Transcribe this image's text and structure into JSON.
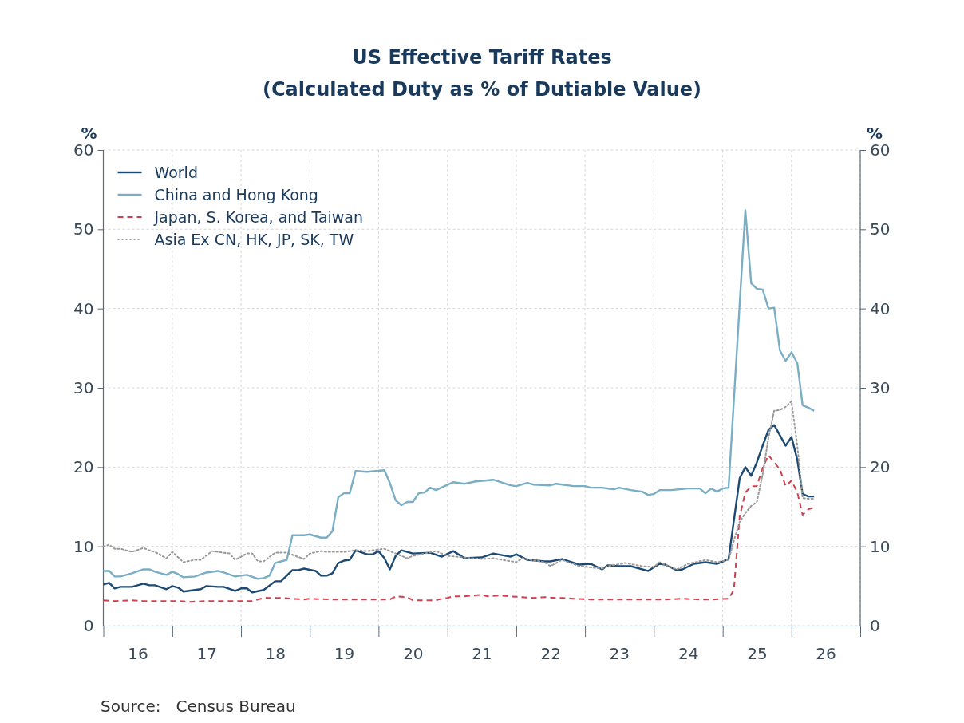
{
  "chart_data": {
    "type": "line",
    "title": "US Effective Tariff Rates",
    "subtitle": "(Calculated Duty as % of Dutiable Value)",
    "ylabel": "%",
    "y2label": "%",
    "annotations": [
      "Source:   Census Bureau"
    ],
    "xlim": [
      "2016-01-01",
      "2027-01-01"
    ],
    "xticks": [
      {
        "value": "2016-01-01",
        "label": null
      },
      {
        "value": "2016-07-01",
        "label": "16"
      },
      {
        "value": "2017-01-01",
        "label": null
      },
      {
        "value": "2017-07-01",
        "label": "17"
      },
      {
        "value": "2018-01-01",
        "label": null
      },
      {
        "value": "2018-07-01",
        "label": "18"
      },
      {
        "value": "2019-01-01",
        "label": null
      },
      {
        "value": "2019-07-01",
        "label": "19"
      },
      {
        "value": "2020-01-01",
        "label": null
      },
      {
        "value": "2020-07-01",
        "label": "20"
      },
      {
        "value": "2021-01-01",
        "label": null
      },
      {
        "value": "2021-07-01",
        "label": "21"
      },
      {
        "value": "2022-01-01",
        "label": null
      },
      {
        "value": "2022-07-01",
        "label": "22"
      },
      {
        "value": "2023-01-01",
        "label": null
      },
      {
        "value": "2023-07-01",
        "label": "23"
      },
      {
        "value": "2024-01-01",
        "label": null
      },
      {
        "value": "2024-07-01",
        "label": "24"
      },
      {
        "value": "2025-01-01",
        "label": null
      },
      {
        "value": "2025-07-01",
        "label": "25"
      },
      {
        "value": "2026-01-01",
        "label": null
      },
      {
        "value": "2026-07-01",
        "label": "26"
      },
      {
        "value": "2027-01-01",
        "label": null
      }
    ],
    "ylim": [
      0,
      60
    ],
    "yticks": [
      0,
      10,
      20,
      30,
      40,
      50,
      60
    ],
    "y2lim": [
      0,
      60
    ],
    "y2ticks": [
      0,
      10,
      20,
      30,
      40,
      50,
      60
    ],
    "grid": true,
    "legend": "top left",
    "series": [
      {
        "name": "World",
        "color": "#1c4a72",
        "line_style": "solid",
        "x": [
          "2016-01",
          "2016-02",
          "2016-03",
          "2016-04",
          "2016-06",
          "2016-08",
          "2016-09",
          "2016-10",
          "2016-12",
          "2017-01",
          "2017-02",
          "2017-03",
          "2017-05",
          "2017-06",
          "2017-07",
          "2017-09",
          "2017-10",
          "2017-12",
          "2018-01",
          "2018-02",
          "2018-03",
          "2018-05",
          "2018-07",
          "2018-08",
          "2018-10",
          "2018-11",
          "2018-12",
          "2019-02",
          "2019-03",
          "2019-04",
          "2019-05",
          "2019-06",
          "2019-07",
          "2019-08",
          "2019-09",
          "2019-11",
          "2019-12",
          "2020-01",
          "2020-02",
          "2020-03",
          "2020-04",
          "2020-05",
          "2020-07",
          "2020-10",
          "2020-12",
          "2021-02",
          "2021-04",
          "2021-07",
          "2021-09",
          "2021-12",
          "2022-01",
          "2022-03",
          "2022-06",
          "2022-07",
          "2022-09",
          "2022-12",
          "2023-02",
          "2023-04",
          "2023-05",
          "2023-07",
          "2023-09",
          "2023-12",
          "2024-02",
          "2024-03",
          "2024-05",
          "2024-06",
          "2024-08",
          "2024-10",
          "2024-12",
          "2025-02",
          "2025-04",
          "2025-05",
          "2025-06",
          "2025-07",
          "2025-08",
          "2025-09",
          "2025-10",
          "2025-11",
          "2025-12",
          "2026-01",
          "2026-02",
          "2026-03",
          "2026-04",
          "2026-05"
        ],
        "values": [
          5.2,
          5.4,
          4.7,
          4.9,
          4.9,
          5.3,
          5.1,
          5.1,
          4.6,
          5.0,
          4.8,
          4.3,
          4.5,
          4.6,
          5.0,
          4.9,
          4.9,
          4.4,
          4.7,
          4.7,
          4.2,
          4.5,
          5.6,
          5.6,
          7.0,
          7.0,
          7.2,
          6.9,
          6.3,
          6.3,
          6.6,
          7.9,
          8.2,
          8.3,
          9.5,
          9.0,
          9.0,
          9.4,
          8.5,
          7.1,
          8.8,
          9.5,
          9.1,
          9.2,
          8.7,
          9.4,
          8.5,
          8.6,
          9.1,
          8.7,
          9.0,
          8.3,
          8.1,
          8.1,
          8.4,
          7.7,
          7.8,
          7.1,
          7.6,
          7.5,
          7.5,
          6.9,
          7.8,
          7.7,
          7.0,
          7.1,
          7.8,
          8.0,
          7.8,
          8.4,
          18.6,
          20.0,
          18.9,
          20.6,
          22.7,
          24.7,
          25.3,
          24.0,
          22.7,
          23.8,
          20.9,
          16.6,
          16.3,
          16.3
        ]
      },
      {
        "name": "China and Hong Kong",
        "color": "#7aaec4",
        "line_style": "solid",
        "x": [
          "2016-01",
          "2016-02",
          "2016-03",
          "2016-04",
          "2016-06",
          "2016-08",
          "2016-09",
          "2016-10",
          "2016-12",
          "2017-01",
          "2017-02",
          "2017-03",
          "2017-05",
          "2017-07",
          "2017-09",
          "2017-10",
          "2017-12",
          "2018-02",
          "2018-04",
          "2018-05",
          "2018-06",
          "2018-07",
          "2018-09",
          "2018-10",
          "2018-12",
          "2019-01",
          "2019-03",
          "2019-04",
          "2019-05",
          "2019-06",
          "2019-07",
          "2019-08",
          "2019-09",
          "2019-11",
          "2020-02",
          "2020-03",
          "2020-04",
          "2020-05",
          "2020-06",
          "2020-07",
          "2020-08",
          "2020-09",
          "2020-10",
          "2020-11",
          "2021-02",
          "2021-04",
          "2021-06",
          "2021-09",
          "2021-12",
          "2022-01",
          "2022-03",
          "2022-04",
          "2022-07",
          "2022-08",
          "2022-11",
          "2023-01",
          "2023-02",
          "2023-04",
          "2023-06",
          "2023-07",
          "2023-09",
          "2023-11",
          "2023-12",
          "2024-01",
          "2024-02",
          "2024-04",
          "2024-07",
          "2024-09",
          "2024-10",
          "2024-11",
          "2024-12",
          "2025-01",
          "2025-02",
          "2025-05",
          "2025-06",
          "2025-07",
          "2025-08",
          "2025-09",
          "2025-10",
          "2025-11",
          "2025-12",
          "2026-01",
          "2026-02",
          "2026-03",
          "2026-04",
          "2026-05"
        ],
        "values": [
          6.9,
          6.9,
          6.2,
          6.2,
          6.6,
          7.1,
          7.1,
          6.8,
          6.4,
          6.8,
          6.5,
          6.1,
          6.2,
          6.7,
          6.9,
          6.7,
          6.2,
          6.4,
          5.9,
          6.0,
          6.3,
          7.9,
          8.3,
          11.4,
          11.4,
          11.5,
          11.1,
          11.1,
          11.9,
          16.2,
          16.7,
          16.7,
          19.5,
          19.4,
          19.6,
          18.0,
          15.8,
          15.2,
          15.6,
          15.6,
          16.7,
          16.8,
          17.4,
          17.1,
          18.1,
          17.9,
          18.2,
          18.4,
          17.7,
          17.6,
          18.0,
          17.8,
          17.7,
          17.9,
          17.6,
          17.6,
          17.4,
          17.4,
          17.2,
          17.4,
          17.1,
          16.9,
          16.5,
          16.6,
          17.1,
          17.1,
          17.3,
          17.3,
          16.7,
          17.3,
          16.9,
          17.3,
          17.4,
          52.4,
          43.2,
          42.5,
          42.4,
          40.0,
          40.1,
          34.7,
          33.4,
          34.5,
          33.1,
          27.8,
          27.5,
          27.1
        ]
      },
      {
        "name": "Japan, S. Korea, and Taiwan",
        "color": "#d0404f",
        "line_style": "dashed",
        "x": [
          "2016-01",
          "2016-03",
          "2016-06",
          "2016-08",
          "2016-10",
          "2017-02",
          "2017-04",
          "2017-07",
          "2017-11",
          "2018-03",
          "2018-05",
          "2018-08",
          "2018-10",
          "2018-12",
          "2019-01",
          "2019-05",
          "2019-08",
          "2019-10",
          "2020-03",
          "2020-04",
          "2020-06",
          "2020-07",
          "2020-09",
          "2020-11",
          "2020-12",
          "2021-01",
          "2021-02",
          "2021-04",
          "2021-07",
          "2021-08",
          "2021-10",
          "2021-12",
          "2022-04",
          "2022-06",
          "2022-08",
          "2022-09",
          "2022-11",
          "2023-02",
          "2023-06",
          "2023-08",
          "2024-01",
          "2024-03",
          "2024-06",
          "2024-09",
          "2024-11",
          "2025-02",
          "2025-03",
          "2025-04",
          "2025-05",
          "2025-06",
          "2025-07",
          "2025-08",
          "2025-09",
          "2025-10",
          "2025-11",
          "2025-12",
          "2026-01",
          "2026-02",
          "2026-03",
          "2026-04",
          "2026-05"
        ],
        "values": [
          3.2,
          3.1,
          3.2,
          3.1,
          3.1,
          3.1,
          3.0,
          3.1,
          3.1,
          3.1,
          3.5,
          3.5,
          3.4,
          3.3,
          3.4,
          3.3,
          3.3,
          3.3,
          3.3,
          3.7,
          3.6,
          3.2,
          3.2,
          3.2,
          3.4,
          3.5,
          3.7,
          3.7,
          3.9,
          3.7,
          3.8,
          3.7,
          3.5,
          3.6,
          3.5,
          3.5,
          3.4,
          3.3,
          3.3,
          3.3,
          3.3,
          3.3,
          3.4,
          3.3,
          3.3,
          3.4,
          4.5,
          13.8,
          16.8,
          17.6,
          17.6,
          19.9,
          21.5,
          20.6,
          19.7,
          17.6,
          18.3,
          16.8,
          14.0,
          14.7,
          14.9
        ]
      },
      {
        "name": "Asia Ex CN, HK, JP, SK, TW",
        "color": "#999999",
        "line_style": "dotted",
        "x": [
          "2016-01",
          "2016-02",
          "2016-03",
          "2016-04",
          "2016-06",
          "2016-08",
          "2016-09",
          "2016-10",
          "2016-12",
          "2017-01",
          "2017-03",
          "2017-05",
          "2017-06",
          "2017-08",
          "2017-09",
          "2017-11",
          "2017-12",
          "2018-02",
          "2018-03",
          "2018-04",
          "2018-05",
          "2018-07",
          "2018-09",
          "2018-12",
          "2019-01",
          "2019-03",
          "2019-04",
          "2019-07",
          "2019-09",
          "2019-11",
          "2020-02",
          "2020-03",
          "2020-06",
          "2020-07",
          "2020-11",
          "2021-01",
          "2021-04",
          "2021-07",
          "2021-09",
          "2022-01",
          "2022-02",
          "2022-06",
          "2022-07",
          "2022-09",
          "2022-12",
          "2023-04",
          "2023-05",
          "2023-08",
          "2023-11",
          "2024-01",
          "2024-02",
          "2024-05",
          "2024-07",
          "2024-10",
          "2024-12",
          "2025-02",
          "2025-03",
          "2025-04",
          "2025-05",
          "2025-06",
          "2025-07",
          "2025-08",
          "2025-09",
          "2025-10",
          "2025-11",
          "2025-12",
          "2026-01",
          "2026-02",
          "2026-03",
          "2026-04",
          "2026-05"
        ],
        "values": [
          10.0,
          10.2,
          9.7,
          9.7,
          9.3,
          9.8,
          9.5,
          9.3,
          8.5,
          9.3,
          8.0,
          8.3,
          8.3,
          9.4,
          9.3,
          9.1,
          8.3,
          9.1,
          9.1,
          8.1,
          8.1,
          9.2,
          9.2,
          8.4,
          9.1,
          9.4,
          9.3,
          9.3,
          9.5,
          9.4,
          9.7,
          9.4,
          8.5,
          8.8,
          9.4,
          8.8,
          8.6,
          8.4,
          8.5,
          8.0,
          8.5,
          8.0,
          7.5,
          8.3,
          7.5,
          7.2,
          7.5,
          7.9,
          7.5,
          7.4,
          8.0,
          7.1,
          7.8,
          8.3,
          8.0,
          8.3,
          10.7,
          13.1,
          14.2,
          15.1,
          15.6,
          19.1,
          23.7,
          27.1,
          27.2,
          27.6,
          28.3,
          22.7,
          16.1,
          16.0,
          16.0
        ]
      }
    ]
  }
}
